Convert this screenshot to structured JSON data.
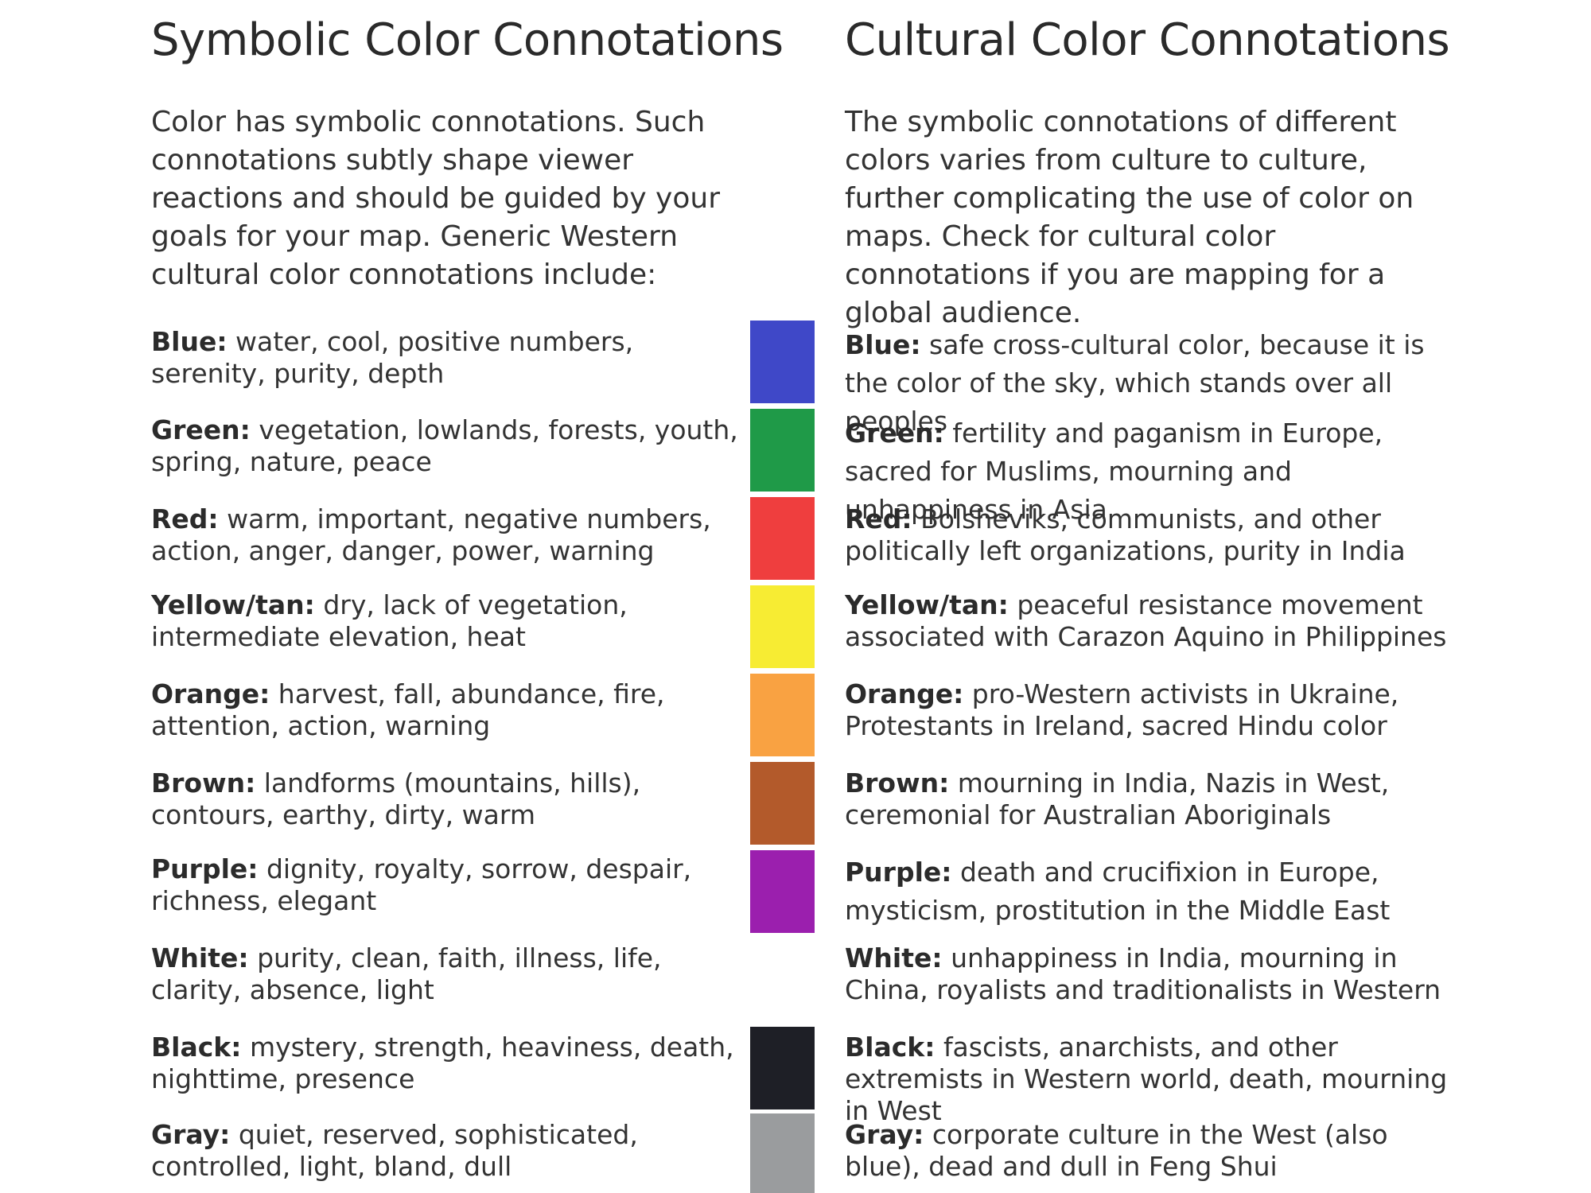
{
  "left": {
    "heading": "Symbolic Color Connotations",
    "intro": "Color has symbolic connotations. Such connotations subtly shape viewer reactions and should be guided by your goals for your map. Generic Western cultural color connotations include:"
  },
  "right": {
    "heading": "Cultural Color Connotations",
    "intro": "The symbolic connotations of different colors varies from culture to culture, further complicating the use of color on maps. Check for cultural color connotations if you are mapping for a global audience."
  },
  "colors": [
    {
      "label": "Blue:",
      "symbolic": "water, cool, positive numbers, serenity, purity, depth",
      "cultural": "safe cross-cultural color, because it is the color of the sky, which stands over all peoples",
      "swatch": "#3f48c8"
    },
    {
      "label": "Green:",
      "symbolic": "vegetation, lowlands, forests, youth, spring, nature, peace",
      "cultural": "fertility and paganism in Europe, sacred for Muslims, mourning and unhappiness in Asia",
      "swatch": "#1f9a48"
    },
    {
      "label": "Red:",
      "symbolic": "warm, important, negative numbers, action, anger, danger, power, warning",
      "cultural": "Bolsheviks, communists, and other politically left organizations, purity in India",
      "swatch": "#ef3e3e"
    },
    {
      "label": "Yellow/tan:",
      "symbolic": "dry, lack of vegetation, intermediate elevation, heat",
      "cultural": "peaceful resistance movement associated with Carazon Aquino in Philippines",
      "swatch": "#f7ec33"
    },
    {
      "label": "Orange:",
      "symbolic": "harvest, fall, abundance, fire, attention, action, warning",
      "cultural": "pro-Western activists in Ukraine, Protestants in Ireland, sacred Hindu color",
      "swatch": "#f9a242"
    },
    {
      "label": "Brown:",
      "symbolic": "landforms (mountains, hills), contours, earthy, dirty, warm",
      "cultural": "mourning in India, Nazis in West, ceremonial for Australian Aboriginals",
      "swatch": "#b35a2b"
    },
    {
      "label": "Purple:",
      "symbolic": "dignity, royalty, sorrow, despair, richness, elegant",
      "cultural": "death and crucifixion in Europe, mysticism, prostitution in the Middle East",
      "swatch": "#9b1fae"
    },
    {
      "label": "White:",
      "symbolic": "purity, clean, faith, illness, life, clarity, absence, light",
      "cultural": "unhappiness in India, mourning in China, royalists and traditionalists in Western",
      "swatch": "#ffffff"
    },
    {
      "label": "Black:",
      "symbolic": "mystery, strength, heaviness, death, nighttime, presence",
      "cultural": "fascists, anarchists, and other extremists in Western world, death, mourning in West",
      "swatch": "#1e1f26"
    },
    {
      "label": "Gray:",
      "symbolic": "quiet, reserved, sophisticated, controlled, light, bland, dull",
      "cultural": "corporate culture in the West (also blue), dead and dull in Feng Shui",
      "swatch": "#9a9c9e"
    }
  ]
}
